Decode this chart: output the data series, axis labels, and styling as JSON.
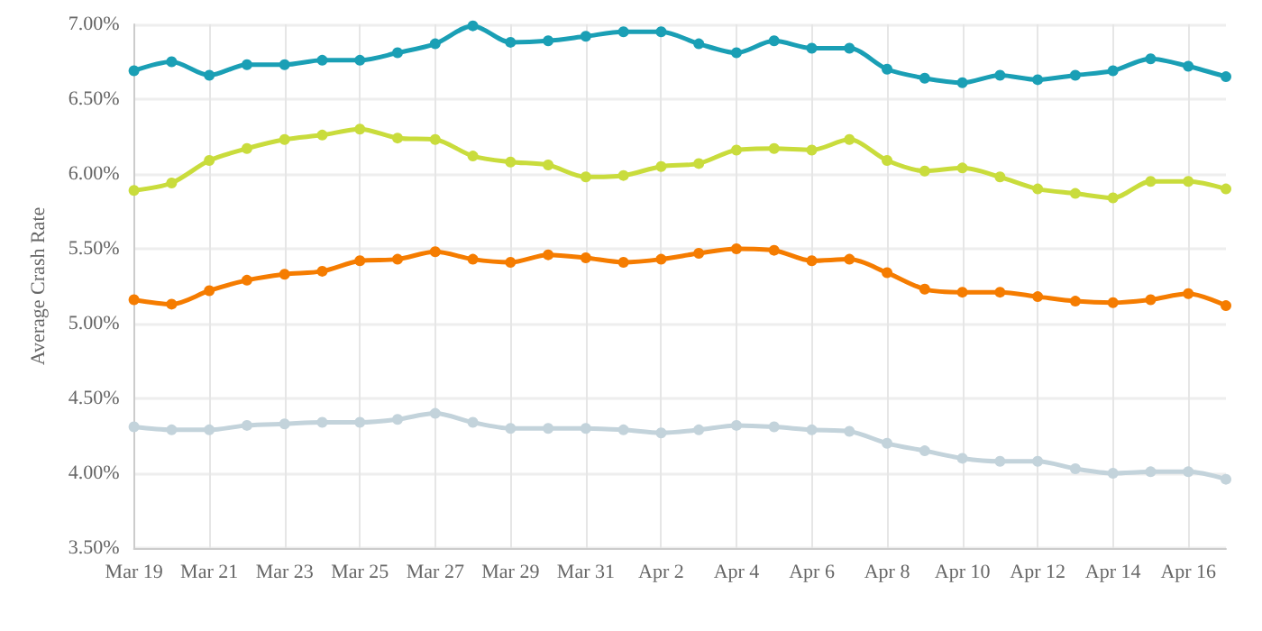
{
  "chart_data": {
    "type": "line",
    "ylabel": "Average Crash Rate",
    "categories": [
      "Mar 19",
      null,
      "Mar 21",
      null,
      "Mar 23",
      null,
      "Mar 25",
      null,
      "Mar 27",
      null,
      "Mar 29",
      null,
      "Mar 31",
      null,
      "Apr 2",
      null,
      "Apr 4",
      null,
      "Apr 6",
      null,
      "Apr 8",
      null,
      "Apr 10",
      null,
      "Apr 12",
      null,
      "Apr 14",
      null,
      "Apr 16",
      null
    ],
    "series": [
      {
        "color": "#1a9fb5",
        "values": [
          6.69,
          6.75,
          6.66,
          6.73,
          6.73,
          6.76,
          6.76,
          6.81,
          6.87,
          6.99,
          6.88,
          6.89,
          6.92,
          6.95,
          6.95,
          6.87,
          6.81,
          6.89,
          6.84,
          6.84,
          6.7,
          6.64,
          6.61,
          6.66,
          6.63,
          6.66,
          6.69,
          6.77,
          6.72,
          6.65
        ]
      },
      {
        "color": "#c9dc3c",
        "values": [
          5.89,
          5.94,
          6.09,
          6.17,
          6.23,
          6.26,
          6.3,
          6.24,
          6.23,
          6.12,
          6.08,
          6.06,
          5.98,
          5.99,
          6.05,
          6.07,
          6.16,
          6.17,
          6.16,
          6.23,
          6.09,
          6.02,
          6.04,
          5.98,
          5.9,
          5.87,
          5.84,
          5.95,
          5.95,
          5.9
        ]
      },
      {
        "color": "#f57c00",
        "values": [
          5.16,
          5.13,
          5.22,
          5.29,
          5.33,
          5.35,
          5.42,
          5.43,
          5.48,
          5.43,
          5.41,
          5.46,
          5.44,
          5.41,
          5.43,
          5.47,
          5.5,
          5.49,
          5.42,
          5.43,
          5.34,
          5.23,
          5.21,
          5.21,
          5.18,
          5.15,
          5.14,
          5.16,
          5.2,
          5.12
        ]
      },
      {
        "color": "#c3d3db",
        "values": [
          4.31,
          4.29,
          4.29,
          4.32,
          4.33,
          4.34,
          4.34,
          4.36,
          4.4,
          4.34,
          4.3,
          4.3,
          4.3,
          4.29,
          4.27,
          4.29,
          4.32,
          4.31,
          4.29,
          4.28,
          4.2,
          4.15,
          4.1,
          4.08,
          4.08,
          4.03,
          4.0,
          4.01,
          4.01,
          3.96
        ]
      }
    ],
    "ylim": [
      3.5,
      7.0
    ],
    "yticks": [
      {
        "value": 3.5,
        "label": "3.50%"
      },
      {
        "value": 4.0,
        "label": "4.00%"
      },
      {
        "value": 4.5,
        "label": "4.50%"
      },
      {
        "value": 5.0,
        "label": "5.00%"
      },
      {
        "value": 5.5,
        "label": "5.50%"
      },
      {
        "value": 6.0,
        "label": "6.00%"
      },
      {
        "value": 6.5,
        "label": "6.50%"
      },
      {
        "value": 7.0,
        "label": "7.00%"
      }
    ],
    "grid": true,
    "marker": "circle",
    "line_style": "solid"
  }
}
